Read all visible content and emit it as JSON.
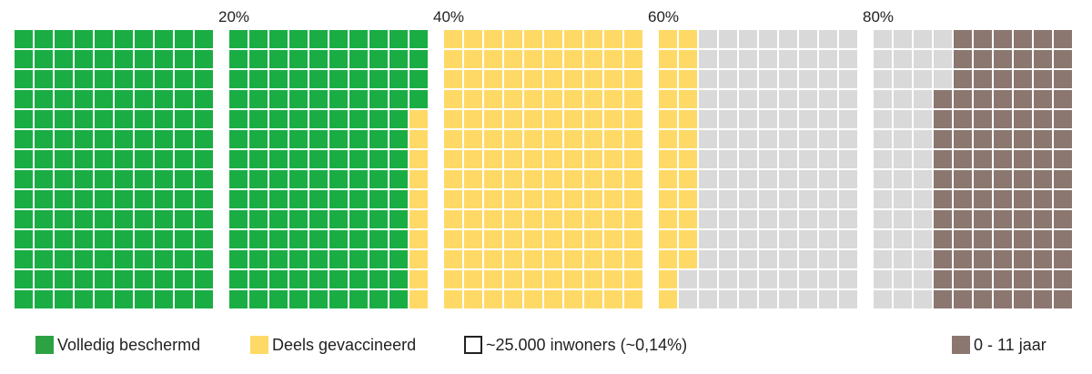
{
  "chart_data": {
    "type": "waffle",
    "unit_label": "~25.000 inwoners (~0,14%)",
    "grid_rows": 14,
    "grid_cols_per_block": 10,
    "blocks": 5,
    "tick_labels": [
      "20%",
      "40%",
      "60%",
      "80%"
    ],
    "series": [
      {
        "name": "Volledig beschermd",
        "cells": 270,
        "color": "#1aad44"
      },
      {
        "name": "Deels gevaccineerd",
        "cells": 176,
        "color": "#ffd966"
      },
      {
        "name": "",
        "cells": 159,
        "color": "#d9d9d9"
      },
      {
        "name": "0 - 11 jaar",
        "cells": 95,
        "color": "#8b7770"
      }
    ]
  },
  "legend": {
    "full": {
      "label": "Volledig beschermd",
      "color": "#2ca243"
    },
    "partial": {
      "label": "Deels gevaccineerd",
      "color": "#ffd966"
    },
    "unit": {
      "label": "~25.000 inwoners (~0,14%)"
    },
    "kids": {
      "label": "0 - 11 jaar",
      "color": "#8b7770"
    }
  }
}
